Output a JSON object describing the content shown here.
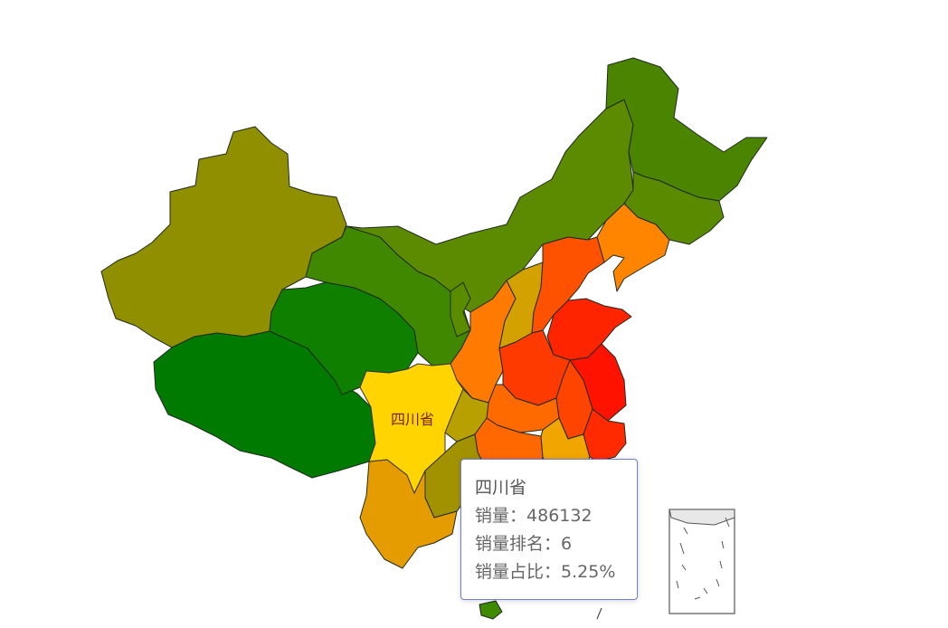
{
  "map": {
    "highlight": "四川省",
    "label_color": "#7a1e00",
    "regions": [
      {
        "name": "新疆",
        "color": "#8f8f00"
      },
      {
        "name": "西藏",
        "color": "#007a00"
      },
      {
        "name": "青海",
        "color": "#0f7f00"
      },
      {
        "name": "甘肃",
        "color": "#3f8800"
      },
      {
        "name": "内蒙古",
        "color": "#5c8a00"
      },
      {
        "name": "黑龙江",
        "color": "#4b8500"
      },
      {
        "name": "吉林",
        "color": "#5a8a00"
      },
      {
        "name": "辽宁",
        "color": "#ff8500"
      },
      {
        "name": "四川省",
        "color": "#ffd400"
      },
      {
        "name": "云南",
        "color": "#e49c00"
      },
      {
        "name": "贵州",
        "color": "#a39200"
      },
      {
        "name": "重庆",
        "color": "#b8a000"
      },
      {
        "name": "陕西",
        "color": "#ff7a00"
      },
      {
        "name": "山西",
        "color": "#d4a200"
      },
      {
        "name": "河北",
        "color": "#ff5200"
      },
      {
        "name": "河南",
        "color": "#ff3a00"
      },
      {
        "name": "山东",
        "color": "#ff2400"
      },
      {
        "name": "江苏",
        "color": "#ff1200"
      },
      {
        "name": "湖北",
        "color": "#ff6a00"
      },
      {
        "name": "湖南",
        "color": "#ff6800"
      },
      {
        "name": "安徽",
        "color": "#ff4400"
      },
      {
        "name": "浙江",
        "color": "#ff2a00"
      },
      {
        "name": "江西",
        "color": "#f0a500"
      },
      {
        "name": "宁夏",
        "color": "#5a8c00"
      }
    ]
  },
  "tooltip": {
    "title": "四川省",
    "lines": [
      {
        "label": "销量：",
        "value": "486132"
      },
      {
        "label": "销量排名：",
        "value": "6"
      },
      {
        "label": "销量占比：",
        "value": "5.25%"
      }
    ]
  }
}
